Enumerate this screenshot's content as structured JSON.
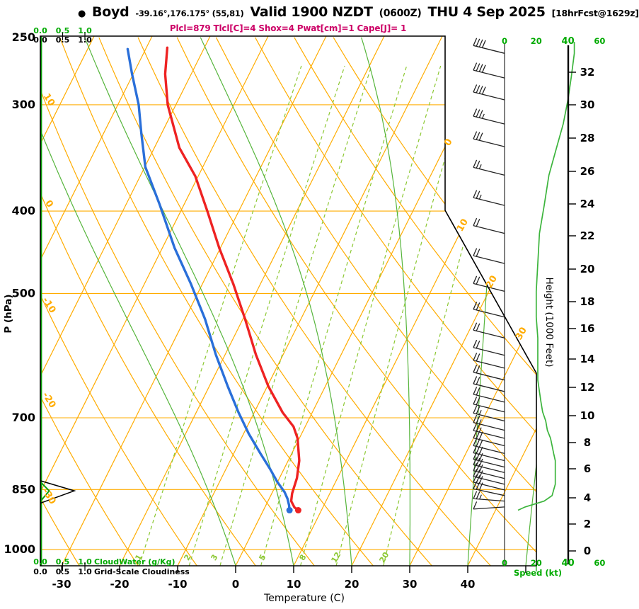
{
  "header": {
    "bullet": "●",
    "station": "Boyd",
    "coords": "-39.16°,176.175° (55,81)",
    "valid": "Valid 1900 NZDT",
    "valid_utc": "(0600Z)",
    "valid_date": "THU 4 Sep 2025",
    "fcst": "[18hrFcst@1629z]",
    "params": "Plcl=879 Tlcl[C]=4 Shox=4 Pwat[cm]=1 Cape[J]= 1"
  },
  "colors": {
    "orange": "#ffac00",
    "mixing_green": "#8cc832",
    "moist_green": "#56b53c",
    "axis_green": "#00aa00",
    "speed_green": "#3cb43c",
    "cloudwater_green": "#0a9e0a",
    "red": "#ee2222",
    "blue": "#2a6fd9",
    "magenta": "#cc0066",
    "black": "#000000"
  },
  "chart_data": {
    "type": "skewt_sounding",
    "pressure_axis": {
      "label": "P (hPa)",
      "ticks": [
        250,
        300,
        400,
        500,
        700,
        850,
        1000
      ],
      "range": [
        250,
        1045
      ],
      "scale": "log"
    },
    "temp_axis": {
      "label": "Temperature (C)",
      "ticks": [
        -30,
        -20,
        -10,
        0,
        10,
        20,
        30,
        40
      ],
      "skew": true
    },
    "height_axis": {
      "label": "Height (1000 Feet)",
      "ticks": [
        0,
        2,
        4,
        6,
        8,
        10,
        12,
        14,
        16,
        18,
        20,
        22,
        24,
        26,
        28,
        30,
        32
      ]
    },
    "speed_axis": {
      "label": "Speed (kt)",
      "ticks": [
        0,
        20,
        40,
        60
      ]
    },
    "cloudwater_scale": {
      "label": "CloudWater (g/Kg)",
      "ticks": [
        "0.0",
        "0.5",
        "1.0"
      ]
    },
    "cloudiness_scale": {
      "label": "Grid-Scale Cloudiness",
      "ticks": [
        "0.0",
        "0.5",
        "1.0"
      ]
    },
    "isotherm_labels_right": [
      0,
      10,
      20,
      30
    ],
    "dry_adiabat_labels_left": [
      10,
      0,
      -10,
      -20,
      -30
    ],
    "mixing_ratio_values": [
      1,
      2,
      3,
      5,
      8,
      12,
      20
    ],
    "temperature_profile": [
      [
        257,
        -56.4
      ],
      [
        276,
        -54.5
      ],
      [
        300,
        -51.4
      ],
      [
        337,
        -45.7
      ],
      [
        364,
        -40.5
      ],
      [
        401,
        -35.3
      ],
      [
        442,
        -30.2
      ],
      [
        487,
        -24.7
      ],
      [
        536,
        -19.6
      ],
      [
        590,
        -14.7
      ],
      [
        643,
        -9.8
      ],
      [
        690,
        -5.1
      ],
      [
        717,
        -2.0
      ],
      [
        740,
        -0.3
      ],
      [
        786,
        1.9
      ],
      [
        824,
        3.0
      ],
      [
        859,
        3.5
      ],
      [
        877,
        4.0
      ],
      [
        892,
        5.1
      ],
      [
        899,
        6.0
      ]
    ],
    "dewpoint_profile": [
      [
        258,
        -63.1
      ],
      [
        276,
        -60.2
      ],
      [
        300,
        -56.4
      ],
      [
        324,
        -53.5
      ],
      [
        355,
        -49.9
      ],
      [
        393,
        -44.2
      ],
      [
        442,
        -37.9
      ],
      [
        487,
        -32.0
      ],
      [
        536,
        -26.5
      ],
      [
        590,
        -21.6
      ],
      [
        643,
        -16.8
      ],
      [
        690,
        -12.7
      ],
      [
        731,
        -9.1
      ],
      [
        771,
        -5.4
      ],
      [
        804,
        -2.4
      ],
      [
        832,
        -0.1
      ],
      [
        856,
        2.1
      ],
      [
        872,
        3.2
      ],
      [
        887,
        4.0
      ],
      [
        899,
        4.5
      ]
    ],
    "wind_profile": [
      [
        261,
        44
      ],
      [
        279,
        42
      ],
      [
        296,
        40
      ],
      [
        316,
        37
      ],
      [
        336,
        33
      ],
      [
        363,
        28
      ],
      [
        394,
        25
      ],
      [
        425,
        22
      ],
      [
        461,
        21
      ],
      [
        497,
        20
      ],
      [
        533,
        20
      ],
      [
        564,
        21
      ],
      [
        591,
        21
      ],
      [
        612,
        21
      ],
      [
        632,
        21
      ],
      [
        652,
        22
      ],
      [
        671,
        23
      ],
      [
        689,
        24
      ],
      [
        706,
        26
      ],
      [
        724,
        27
      ],
      [
        740,
        29
      ],
      [
        755,
        30
      ],
      [
        771,
        31
      ],
      [
        786,
        32
      ],
      [
        800,
        32
      ],
      [
        812,
        32
      ],
      [
        825,
        32
      ],
      [
        838,
        32
      ],
      [
        851,
        31
      ],
      [
        864,
        30
      ],
      [
        877,
        25
      ],
      [
        891,
        13
      ]
    ],
    "speed_profile": [
      [
        253,
        44
      ],
      [
        261,
        44
      ],
      [
        279,
        42
      ],
      [
        296,
        40
      ],
      [
        316,
        37
      ],
      [
        336,
        33
      ],
      [
        363,
        28
      ],
      [
        394,
        25
      ],
      [
        425,
        22
      ],
      [
        461,
        21
      ],
      [
        497,
        20
      ],
      [
        533,
        20
      ],
      [
        564,
        21
      ],
      [
        591,
        21
      ],
      [
        612,
        21
      ],
      [
        632,
        21
      ],
      [
        652,
        22
      ],
      [
        671,
        23
      ],
      [
        689,
        24
      ],
      [
        706,
        26
      ],
      [
        724,
        27
      ],
      [
        740,
        29
      ],
      [
        755,
        30
      ],
      [
        771,
        31
      ],
      [
        786,
        32
      ],
      [
        800,
        32
      ],
      [
        812,
        32
      ],
      [
        825,
        32
      ],
      [
        838,
        32
      ],
      [
        851,
        31
      ],
      [
        864,
        30
      ],
      [
        877,
        25
      ],
      [
        891,
        13
      ],
      [
        899,
        8.5
      ]
    ],
    "cloudwater_profile": {
      "top_p": 834,
      "peak_p": 853,
      "bottom_p": 876,
      "peak_gkg": 0.2
    },
    "cloudiness_profile": {
      "top_p": 830,
      "peak_p": 853,
      "bottom_p": 882,
      "peak_frac": 0.77
    }
  }
}
